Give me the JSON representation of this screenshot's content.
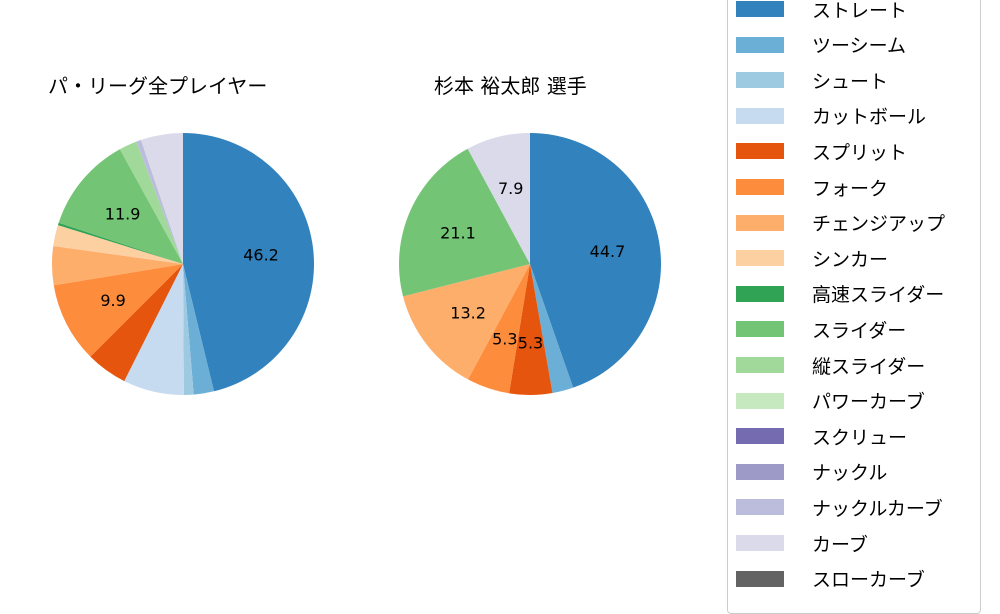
{
  "chart_data": [
    {
      "type": "pie",
      "title": "パ・リーグ全プレイヤー",
      "start_angle": 90,
      "direction": "clockwise",
      "categories": [
        "ストレート",
        "ツーシーム",
        "シュート",
        "カットボール",
        "スプリット",
        "フォーク",
        "チェンジアップ",
        "シンカー",
        "高速スライダー",
        "スライダー",
        "縦スライダー",
        "パワーカーブ",
        "スクリュー",
        "ナックル",
        "ナックルカーブ",
        "カーブ",
        "スローカーブ"
      ],
      "values": [
        46.2,
        2.5,
        1.2,
        7.5,
        5.1,
        9.9,
        4.8,
        2.6,
        0.3,
        11.9,
        2.2,
        0.0,
        0.0,
        0.0,
        0.6,
        5.2,
        0.0
      ],
      "labels_shown": {
        "ストレート": "46.2",
        "フォーク": "9.9",
        "スライダー": "11.9"
      }
    },
    {
      "type": "pie",
      "title": "杉本 裕太郎  選手",
      "start_angle": 90,
      "direction": "clockwise",
      "categories": [
        "ストレート",
        "ツーシーム",
        "シュート",
        "カットボール",
        "スプリット",
        "フォーク",
        "チェンジアップ",
        "シンカー",
        "高速スライダー",
        "スライダー",
        "縦スライダー",
        "パワーカーブ",
        "スクリュー",
        "ナックル",
        "ナックルカーブ",
        "カーブ",
        "スローカーブ"
      ],
      "values": [
        44.7,
        2.6,
        0,
        0,
        5.3,
        5.3,
        13.2,
        0,
        0,
        21.1,
        0,
        0,
        0,
        0,
        0,
        7.9,
        0
      ],
      "labels_shown": {
        "ストレート": "44.7",
        "スプリット": "5.3",
        "フォーク": "5.3",
        "チェンジアップ": "13.2",
        "スライダー": "21.1",
        "カーブ": "7.9"
      }
    }
  ],
  "titles": {
    "left": "パ・リーグ全プレイヤー",
    "right": "杉本 裕太郎  選手"
  },
  "legend": [
    {
      "label": "ストレート",
      "color": "#3182bd"
    },
    {
      "label": "ツーシーム",
      "color": "#6baed6"
    },
    {
      "label": "シュート",
      "color": "#9ecae1"
    },
    {
      "label": "カットボール",
      "color": "#c6dbef"
    },
    {
      "label": "スプリット",
      "color": "#e6550d"
    },
    {
      "label": "フォーク",
      "color": "#fd8d3c"
    },
    {
      "label": "チェンジアップ",
      "color": "#fdae6b"
    },
    {
      "label": "シンカー",
      "color": "#fdd0a2"
    },
    {
      "label": "高速スライダー",
      "color": "#31a354"
    },
    {
      "label": "スライダー",
      "color": "#74c476"
    },
    {
      "label": "縦スライダー",
      "color": "#a1d99b"
    },
    {
      "label": "パワーカーブ",
      "color": "#c7e9c0"
    },
    {
      "label": "スクリュー",
      "color": "#756bb1"
    },
    {
      "label": "ナックル",
      "color": "#9e9ac8"
    },
    {
      "label": "ナックルカーブ",
      "color": "#bcbddc"
    },
    {
      "label": "カーブ",
      "color": "#dadaeb"
    },
    {
      "label": "スローカーブ",
      "color": "#636363"
    }
  ]
}
